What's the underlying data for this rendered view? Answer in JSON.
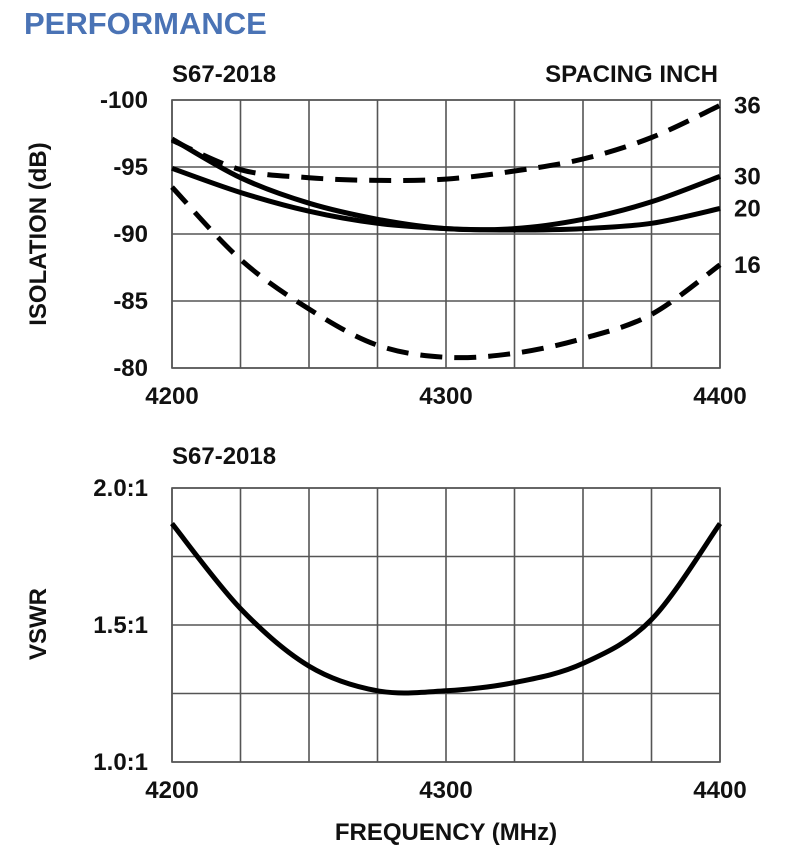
{
  "header": {
    "title": "PERFORMANCE"
  },
  "colors": {
    "title": "#4a73b5",
    "curve": "#000000",
    "grid": "#555555"
  },
  "chart_data": [
    {
      "id": "isolation",
      "type": "line",
      "title": "S67-2018",
      "legend_title": "SPACING INCH",
      "xlabel": "",
      "ylabel": "ISOLATION (dB)",
      "xlim": [
        4200,
        4400
      ],
      "ylim": [
        -100,
        -80
      ],
      "x_grid_step": 25,
      "y_grid_step": 5,
      "y_inverted": true,
      "x_ticks": [
        "4200",
        "4300",
        "4400"
      ],
      "y_ticks": [
        {
          "value": -100,
          "label": "-100"
        },
        {
          "value": -95,
          "label": "-95"
        },
        {
          "value": -90,
          "label": "-90"
        },
        {
          "value": -85,
          "label": "-85"
        },
        {
          "value": -80,
          "label": "-80"
        }
      ],
      "grid": true,
      "series": [
        {
          "name": "36",
          "dash": true,
          "end_value": -99.6,
          "x": [
            4200,
            4225,
            4250,
            4275,
            4300,
            4325,
            4350,
            4375,
            4400
          ],
          "y": [
            -97,
            -94.8,
            -94.2,
            -94,
            -94.1,
            -94.7,
            -95.6,
            -97.2,
            -99.6
          ]
        },
        {
          "name": "30",
          "dash": false,
          "end_value": -94.3,
          "x": [
            4200,
            4225,
            4250,
            4275,
            4300,
            4325,
            4350,
            4375,
            4400
          ],
          "y": [
            -97.1,
            -94.2,
            -92.3,
            -91.1,
            -90.4,
            -90.4,
            -91.1,
            -92.4,
            -94.3
          ]
        },
        {
          "name": "20",
          "dash": false,
          "end_value": -91.9,
          "x": [
            4200,
            4225,
            4250,
            4275,
            4300,
            4325,
            4350,
            4375,
            4400
          ],
          "y": [
            -94.9,
            -93.1,
            -91.7,
            -90.8,
            -90.4,
            -90.3,
            -90.4,
            -90.8,
            -91.9
          ]
        },
        {
          "name": "16",
          "dash": true,
          "end_value": -87.7,
          "x": [
            4200,
            4225,
            4250,
            4275,
            4300,
            4325,
            4350,
            4375,
            4400
          ],
          "y": [
            -93.5,
            -88.1,
            -84.4,
            -81.7,
            -80.8,
            -81.1,
            -82.2,
            -84,
            -87.7
          ]
        }
      ]
    },
    {
      "id": "vswr",
      "type": "line",
      "title": "S67-2018",
      "xlabel": "FREQUENCY (MHz)",
      "ylabel": "VSWR",
      "xlim": [
        4200,
        4400
      ],
      "ylim": [
        1.0,
        2.0
      ],
      "x_grid_step": 25,
      "y_grid_step": 0.25,
      "x_ticks": [
        "4200",
        "4300",
        "4400"
      ],
      "y_ticks": [
        {
          "value": 1.0,
          "label": "1.0:1"
        },
        {
          "value": 1.5,
          "label": "1.5:1"
        },
        {
          "value": 2.0,
          "label": "2.0:1"
        }
      ],
      "grid": true,
      "series": [
        {
          "name": "",
          "dash": false,
          "x": [
            4200,
            4225,
            4250,
            4275,
            4300,
            4325,
            4350,
            4375,
            4400
          ],
          "y": [
            1.87,
            1.56,
            1.35,
            1.26,
            1.26,
            1.29,
            1.36,
            1.52,
            1.87
          ]
        }
      ]
    }
  ]
}
